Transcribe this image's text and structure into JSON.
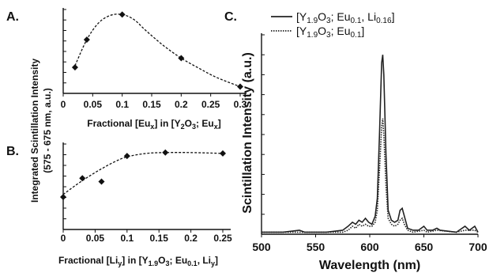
{
  "chart_data": [
    {
      "panel": "A.",
      "type": "scatter",
      "xlabel_prefix": "Fractional [Eu",
      "xlabel_sub1": "x",
      "xlabel_mid": "] in [Y",
      "xlabel_sub2": "2",
      "xlabel_mid2": "O",
      "xlabel_sub3": "3",
      "xlabel_end": "; Eu",
      "xlabel_sub4": "x",
      "xlabel_close": "]",
      "xticks": [
        "0",
        "0.05",
        "0.1",
        "0.15",
        "0.2",
        "0.25",
        "0.3"
      ],
      "xlim": [
        0,
        0.3
      ],
      "ylim": [
        0,
        1
      ],
      "points": [
        {
          "x": 0.02,
          "y": 0.31
        },
        {
          "x": 0.04,
          "y": 0.64
        },
        {
          "x": 0.1,
          "y": 0.94
        },
        {
          "x": 0.2,
          "y": 0.42
        },
        {
          "x": 0.3,
          "y": 0.08
        }
      ],
      "fit": [
        {
          "x": 0.02,
          "y": 0.33
        },
        {
          "x": 0.04,
          "y": 0.64
        },
        {
          "x": 0.06,
          "y": 0.84
        },
        {
          "x": 0.08,
          "y": 0.93
        },
        {
          "x": 0.1,
          "y": 0.94
        },
        {
          "x": 0.12,
          "y": 0.88
        },
        {
          "x": 0.14,
          "y": 0.75
        },
        {
          "x": 0.17,
          "y": 0.57
        },
        {
          "x": 0.2,
          "y": 0.42
        },
        {
          "x": 0.23,
          "y": 0.3
        },
        {
          "x": 0.26,
          "y": 0.19
        },
        {
          "x": 0.3,
          "y": 0.08
        }
      ]
    },
    {
      "panel": "B.",
      "type": "scatter",
      "xlabel_prefix": "Fractional [Li",
      "xlabel_sub1": "y",
      "xlabel_mid": "] in [Y",
      "xlabel_sub2": "1.9",
      "xlabel_mid2": "O",
      "xlabel_sub3": "3",
      "xlabel_end": "; Eu",
      "xlabel_sub4": "0.1",
      "xlabel_tail": ", Li",
      "xlabel_sub5": "y",
      "xlabel_close": "]",
      "xticks": [
        "0",
        "0.05",
        "0.1",
        "0.15",
        "0.2",
        "0.25"
      ],
      "xlim": [
        0,
        0.25
      ],
      "ylim": [
        0,
        1
      ],
      "points": [
        {
          "x": 0.0,
          "y": 0.38
        },
        {
          "x": 0.03,
          "y": 0.6
        },
        {
          "x": 0.06,
          "y": 0.56
        },
        {
          "x": 0.1,
          "y": 0.86
        },
        {
          "x": 0.16,
          "y": 0.9
        },
        {
          "x": 0.25,
          "y": 0.89
        }
      ],
      "fit": [
        {
          "x": 0.0,
          "y": 0.41
        },
        {
          "x": 0.02,
          "y": 0.52
        },
        {
          "x": 0.04,
          "y": 0.62
        },
        {
          "x": 0.06,
          "y": 0.71
        },
        {
          "x": 0.08,
          "y": 0.79
        },
        {
          "x": 0.1,
          "y": 0.85
        },
        {
          "x": 0.13,
          "y": 0.89
        },
        {
          "x": 0.16,
          "y": 0.9
        },
        {
          "x": 0.2,
          "y": 0.9
        },
        {
          "x": 0.25,
          "y": 0.89
        }
      ]
    },
    {
      "panel": "C.",
      "type": "line",
      "xlabel": "Wavelength (nm)",
      "ylabel": "Scintillation Intensity (a.u.)",
      "xticks": [
        "500",
        "550",
        "600",
        "650",
        "700"
      ],
      "xlim": [
        500,
        700
      ],
      "ylim": [
        0,
        1
      ],
      "series": [
        {
          "legend_prefix": "[Y",
          "legend_sub1": "1.9",
          "legend_mid1": "O",
          "legend_sub2": "3",
          "legend_mid2": "; Eu",
          "legend_sub3": "0.1",
          "legend_mid3": ", Li",
          "legend_sub4": "0.16",
          "legend_close": "]",
          "style": "solid",
          "points": [
            [
              500,
              0.01
            ],
            [
              520,
              0.01
            ],
            [
              535,
              0.02
            ],
            [
              540,
              0.01
            ],
            [
              560,
              0.01
            ],
            [
              575,
              0.02
            ],
            [
              580,
              0.04
            ],
            [
              584,
              0.06
            ],
            [
              587,
              0.05
            ],
            [
              590,
              0.07
            ],
            [
              593,
              0.06
            ],
            [
              596,
              0.08
            ],
            [
              599,
              0.06
            ],
            [
              602,
              0.05
            ],
            [
              605,
              0.09
            ],
            [
              607,
              0.18
            ],
            [
              609,
              0.5
            ],
            [
              611,
              0.86
            ],
            [
              612,
              0.9
            ],
            [
              613,
              0.8
            ],
            [
              615,
              0.4
            ],
            [
              617,
              0.12
            ],
            [
              620,
              0.07
            ],
            [
              623,
              0.06
            ],
            [
              626,
              0.07
            ],
            [
              628,
              0.12
            ],
            [
              630,
              0.13
            ],
            [
              632,
              0.09
            ],
            [
              635,
              0.03
            ],
            [
              640,
              0.02
            ],
            [
              645,
              0.02
            ],
            [
              650,
              0.04
            ],
            [
              653,
              0.02
            ],
            [
              658,
              0.02
            ],
            [
              662,
              0.03
            ],
            [
              665,
              0.02
            ],
            [
              680,
              0.01
            ],
            [
              688,
              0.04
            ],
            [
              692,
              0.02
            ],
            [
              697,
              0.04
            ],
            [
              700,
              0.01
            ]
          ]
        },
        {
          "legend_prefix": "[Y",
          "legend_sub1": "1.9",
          "legend_mid1": "O",
          "legend_sub2": "3",
          "legend_mid2": "; Eu",
          "legend_sub3": "0.1",
          "legend_close": "]",
          "style": "dotted",
          "points": [
            [
              500,
              0.01
            ],
            [
              520,
              0.01
            ],
            [
              540,
              0.01
            ],
            [
              560,
              0.01
            ],
            [
              575,
              0.01
            ],
            [
              580,
              0.02
            ],
            [
              584,
              0.04
            ],
            [
              587,
              0.03
            ],
            [
              590,
              0.05
            ],
            [
              593,
              0.04
            ],
            [
              596,
              0.05
            ],
            [
              599,
              0.04
            ],
            [
              602,
              0.04
            ],
            [
              605,
              0.06
            ],
            [
              607,
              0.12
            ],
            [
              609,
              0.32
            ],
            [
              611,
              0.54
            ],
            [
              612,
              0.58
            ],
            [
              613,
              0.5
            ],
            [
              615,
              0.24
            ],
            [
              617,
              0.08
            ],
            [
              620,
              0.05
            ],
            [
              623,
              0.04
            ],
            [
              626,
              0.05
            ],
            [
              628,
              0.07
            ],
            [
              630,
              0.08
            ],
            [
              632,
              0.05
            ],
            [
              635,
              0.02
            ],
            [
              640,
              0.01
            ],
            [
              650,
              0.02
            ],
            [
              653,
              0.01
            ],
            [
              662,
              0.02
            ],
            [
              680,
              0.01
            ],
            [
              688,
              0.02
            ],
            [
              697,
              0.02
            ],
            [
              700,
              0.01
            ]
          ]
        }
      ]
    }
  ],
  "shared_ylabel_line1": "Integrated Scintillation Intensity",
  "shared_ylabel_line2": "(575 - 675 nm, a.u.)"
}
